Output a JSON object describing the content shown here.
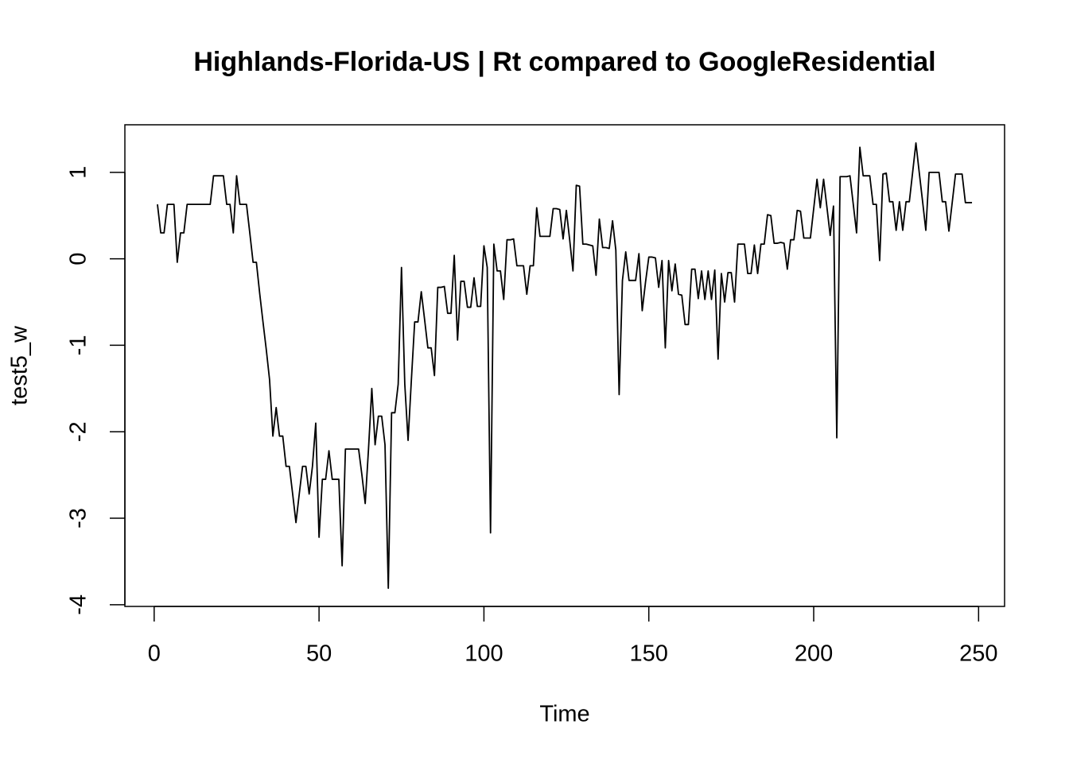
{
  "chart_data": {
    "type": "line",
    "title": "Highlands-Florida-US | Rt compared to GoogleResidential",
    "x_label": "Time",
    "y_label": "test5_w",
    "x": [
      1,
      2,
      3,
      4,
      5,
      6,
      7,
      8,
      9,
      10,
      11,
      12,
      13,
      14,
      15,
      16,
      17,
      18,
      19,
      20,
      21,
      22,
      23,
      24,
      25,
      26,
      27,
      28,
      29,
      30,
      31,
      32,
      33,
      34,
      35,
      36,
      37,
      38,
      39,
      40,
      41,
      42,
      43,
      44,
      45,
      46,
      47,
      48,
      49,
      50,
      51,
      52,
      53,
      54,
      55,
      56,
      57,
      58,
      59,
      60,
      61,
      62,
      63,
      64,
      65,
      66,
      67,
      68,
      69,
      70,
      71,
      72,
      73,
      74,
      75,
      76,
      77,
      78,
      79,
      80,
      81,
      82,
      83,
      84,
      85,
      86,
      87,
      88,
      89,
      90,
      91,
      92,
      93,
      94,
      95,
      96,
      97,
      98,
      99,
      100,
      101,
      102,
      103,
      104,
      105,
      106,
      107,
      108,
      109,
      110,
      111,
      112,
      113,
      114,
      115,
      116,
      117,
      118,
      119,
      120,
      121,
      122,
      123,
      124,
      125,
      126,
      127,
      128,
      129,
      130,
      131,
      132,
      133,
      134,
      135,
      136,
      137,
      138,
      139,
      140,
      141,
      142,
      143,
      144,
      145,
      146,
      147,
      148,
      149,
      150,
      151,
      152,
      153,
      154,
      155,
      156,
      157,
      158,
      159,
      160,
      161,
      162,
      163,
      164,
      165,
      166,
      167,
      168,
      169,
      170,
      171,
      172,
      173,
      174,
      175,
      176,
      177,
      178,
      179,
      180,
      181,
      182,
      183,
      184,
      185,
      186,
      187,
      188,
      189,
      190,
      191,
      192,
      193,
      194,
      195,
      196,
      197,
      198,
      199,
      200,
      201,
      202,
      203,
      204,
      205,
      206,
      207,
      208,
      209,
      210,
      211,
      212,
      213,
      214,
      215,
      216,
      217,
      218,
      219,
      220,
      221,
      222,
      223,
      224,
      225,
      226,
      227,
      228,
      229,
      230,
      231,
      232,
      233,
      234,
      235,
      236,
      237,
      238,
      239,
      240,
      241,
      242,
      243,
      244,
      245,
      246,
      247,
      248
    ],
    "series": [
      {
        "name": "test5_w",
        "color": "#000000",
        "values": [
          0.63,
          0.3,
          0.3,
          0.63,
          0.63,
          0.63,
          -0.04,
          0.3,
          0.3,
          0.63,
          0.63,
          0.63,
          0.63,
          0.63,
          0.63,
          0.63,
          0.63,
          0.96,
          0.96,
          0.96,
          0.96,
          0.63,
          0.63,
          0.3,
          0.96,
          0.63,
          0.63,
          0.63,
          0.3,
          -0.04,
          -0.04,
          -0.4,
          -0.73,
          -1.05,
          -1.4,
          -2.05,
          -1.72,
          -2.05,
          -2.05,
          -2.4,
          -2.4,
          -2.72,
          -3.05,
          -2.72,
          -2.4,
          -2.4,
          -2.72,
          -2.4,
          -1.9,
          -3.22,
          -2.55,
          -2.55,
          -2.22,
          -2.55,
          -2.55,
          -2.55,
          -3.55,
          -2.2,
          -2.2,
          -2.2,
          -2.2,
          -2.2,
          -2.5,
          -2.83,
          -2.2,
          -1.5,
          -2.15,
          -1.82,
          -1.82,
          -2.15,
          -3.81,
          -1.78,
          -1.78,
          -1.45,
          -0.1,
          -1.45,
          -2.1,
          -1.4,
          -0.73,
          -0.73,
          -0.38,
          -0.7,
          -1.03,
          -1.03,
          -1.35,
          -0.33,
          -0.33,
          -0.32,
          -0.63,
          -0.63,
          0.04,
          -0.94,
          -0.26,
          -0.26,
          -0.56,
          -0.56,
          -0.22,
          -0.55,
          -0.55,
          0.15,
          -0.1,
          -3.17,
          0.17,
          -0.14,
          -0.14,
          -0.47,
          0.22,
          0.22,
          0.23,
          -0.08,
          -0.08,
          -0.08,
          -0.41,
          -0.08,
          -0.08,
          0.59,
          0.26,
          0.26,
          0.26,
          0.26,
          0.58,
          0.58,
          0.57,
          0.23,
          0.56,
          0.22,
          -0.14,
          0.85,
          0.84,
          0.17,
          0.17,
          0.16,
          0.15,
          -0.19,
          0.46,
          0.13,
          0.13,
          0.12,
          0.44,
          0.1,
          -1.57,
          -0.25,
          0.08,
          -0.25,
          -0.25,
          -0.25,
          0.06,
          -0.6,
          -0.27,
          0.02,
          0.02,
          0.01,
          -0.33,
          -0.02,
          -1.03,
          -0.02,
          -0.37,
          -0.06,
          -0.41,
          -0.42,
          -0.76,
          -0.76,
          -0.12,
          -0.12,
          -0.46,
          -0.14,
          -0.47,
          -0.14,
          -0.47,
          -0.13,
          -1.16,
          -0.17,
          -0.5,
          -0.16,
          -0.16,
          -0.5,
          0.17,
          0.17,
          0.17,
          -0.17,
          -0.17,
          0.16,
          -0.17,
          0.17,
          0.17,
          0.51,
          0.5,
          0.18,
          0.18,
          0.19,
          0.18,
          -0.12,
          0.22,
          0.22,
          0.56,
          0.55,
          0.24,
          0.24,
          0.24,
          0.58,
          0.92,
          0.59,
          0.92,
          0.6,
          0.27,
          0.61,
          -2.07,
          0.95,
          0.95,
          0.95,
          0.96,
          0.63,
          0.3,
          1.29,
          0.96,
          0.96,
          0.96,
          0.63,
          0.63,
          -0.02,
          0.98,
          0.99,
          0.66,
          0.66,
          0.33,
          0.66,
          0.33,
          0.66,
          0.66,
          1.0,
          1.34,
          1.0,
          0.67,
          0.33,
          1.0,
          1.0,
          1.0,
          1.0,
          0.66,
          0.66,
          0.32,
          0.65,
          0.98,
          0.98,
          0.98,
          0.65,
          0.65,
          0.65
        ]
      }
    ],
    "xlim": [
      -8.88,
      257.88
    ],
    "ylim": [
      -4.02,
      1.55
    ],
    "xticks": [
      0,
      50,
      100,
      150,
      200,
      250
    ],
    "yticks": [
      -4,
      -3,
      -2,
      -1,
      0,
      1
    ]
  }
}
